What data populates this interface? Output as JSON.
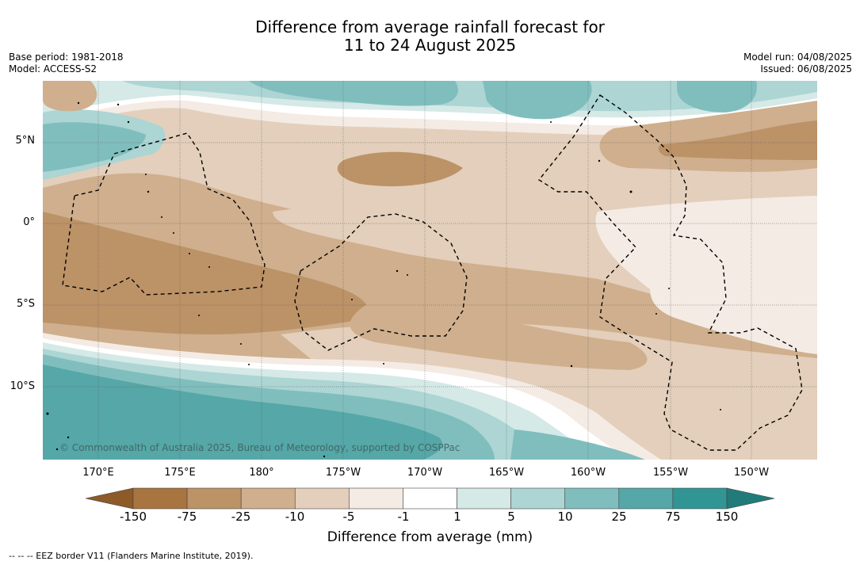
{
  "title_line1": "Difference from average rainfall forecast for",
  "title_line2": "11 to 24 August 2025",
  "base_period": "Base period: 1981-2018",
  "model": "Model: ACCESS-S2",
  "model_run": "Model run: 04/08/2025",
  "issued": "Issued: 06/08/2025",
  "lat_labels": [
    "5°N",
    "0°",
    "5°S",
    "10°S"
  ],
  "lon_labels": [
    "170°E",
    "175°E",
    "180°",
    "175°W",
    "170°W",
    "165°W",
    "160°W",
    "155°W",
    "150°W"
  ],
  "copyright": "© Commonwealth of Australia 2025, Bureau of Meteorology, supported by COSPPac",
  "colorbar": {
    "ticks": [
      "-150",
      "-75",
      "-25",
      "-10",
      "-5",
      "-1",
      "1",
      "5",
      "10",
      "25",
      "75",
      "150"
    ],
    "colors": [
      "#a8743f",
      "#bc9267",
      "#cfaf8d",
      "#e3cfbb",
      "#f4ebe4",
      "#ffffff",
      "#d5e9e7",
      "#acd5d4",
      "#80bebe",
      "#56a7a7",
      "#319594"
    ],
    "under_color": "#8e5a28",
    "over_color": "#217b79",
    "title": "Difference from average (mm)"
  },
  "eez_note": "--  --  -- EEZ border V11 (Flanders Marine Institute, 2019)."
}
